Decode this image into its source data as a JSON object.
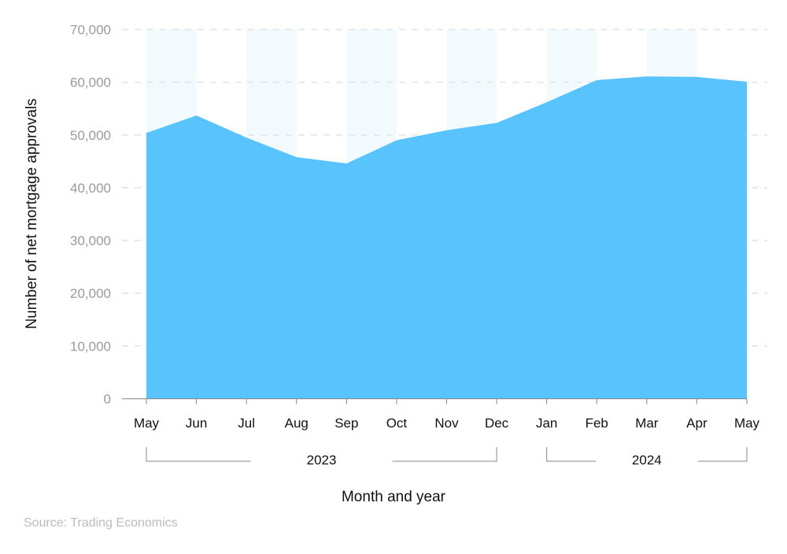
{
  "chart_data": {
    "type": "area",
    "title": "",
    "xlabel": "Month and year",
    "ylabel": "Number of net mortgage approvals",
    "categories": [
      "May",
      "Jun",
      "Jul",
      "Aug",
      "Sep",
      "Oct",
      "Nov",
      "Dec",
      "Jan",
      "Feb",
      "Mar",
      "Apr",
      "May"
    ],
    "year_groups": [
      {
        "label": "2023",
        "from": 0,
        "to": 7
      },
      {
        "label": "2024",
        "from": 8,
        "to": 12
      }
    ],
    "values": [
      50400,
      53700,
      49500,
      45800,
      44600,
      49000,
      50900,
      52300,
      56200,
      60400,
      61100,
      61000,
      60100
    ],
    "ylim": [
      0,
      70000
    ],
    "yticks": [
      0,
      10000,
      20000,
      30000,
      40000,
      50000,
      60000,
      70000
    ],
    "ytick_labels": [
      "0",
      "10,000",
      "20,000",
      "30,000",
      "40,000",
      "50,000",
      "60,000",
      "70,000"
    ],
    "grid": true,
    "alternating_month_bands": true,
    "colors": {
      "area": "#59c3fd",
      "band": "#f2fafe",
      "grid": "#dfe3e6",
      "tick_text": "#9a9a9a",
      "axis": "#888888"
    }
  },
  "source": "Source: Trading Economics"
}
